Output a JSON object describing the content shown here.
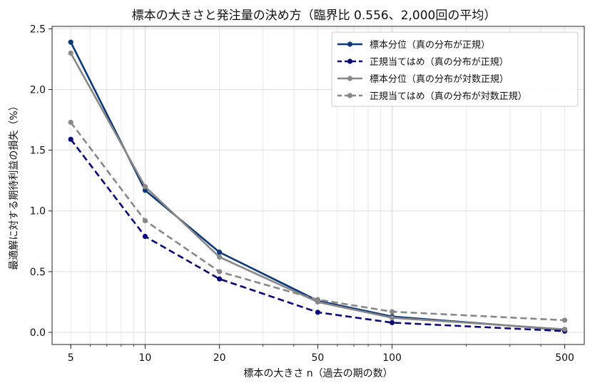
{
  "chart_data": {
    "type": "line",
    "title": "標本の大きさと発注量の決め方（臨界比 0.556、2,000回の平均）",
    "xlabel": "標本の大きさ n（過去の期の数）",
    "ylabel": "最適解に対する期待利益の損失（%）",
    "x_scale": "log",
    "x": [
      5,
      10,
      20,
      50,
      100,
      500
    ],
    "x_tick_labels": [
      "5",
      "10",
      "20",
      "50",
      "100",
      "500"
    ],
    "ylim": [
      -0.1,
      2.52
    ],
    "y_ticks": [
      0.0,
      0.5,
      1.0,
      1.5,
      2.0,
      2.5
    ],
    "y_tick_labels": [
      "0.0",
      "0.5",
      "1.0",
      "1.5",
      "2.0",
      "2.5"
    ],
    "grid": true,
    "legend_position": "top-right",
    "series": [
      {
        "name": "標本分位（真の分布が正規）",
        "values": [
          2.39,
          1.17,
          0.66,
          0.26,
          0.13,
          0.02
        ],
        "color": "#0b3a7a",
        "dashed": false
      },
      {
        "name": "正規当てはめ（真の分布が正規）",
        "values": [
          1.59,
          0.79,
          0.44,
          0.165,
          0.08,
          0.01
        ],
        "color": "#0a0a7a",
        "dashed": true
      },
      {
        "name": "標本分位（真の分布が対数正規）",
        "values": [
          2.3,
          1.2,
          0.62,
          0.25,
          0.12,
          0.025
        ],
        "color": "#888888",
        "dashed": false
      },
      {
        "name": "正規当てはめ（真の分布が対数正規）",
        "values": [
          1.73,
          0.92,
          0.5,
          0.27,
          0.17,
          0.1
        ],
        "color": "#888888",
        "dashed": true
      }
    ]
  }
}
